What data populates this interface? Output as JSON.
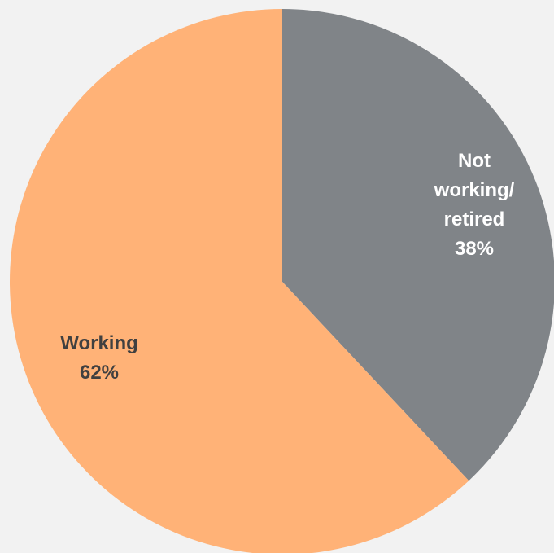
{
  "chart_data": {
    "type": "pie",
    "title": "",
    "legend": "none",
    "slices": [
      {
        "name": "Not working/ retired",
        "label_lines": [
          "Not",
          "working/",
          "retired"
        ],
        "percent_label": "38%",
        "value": 38,
        "color": "#808488",
        "label_color": "#ffffff"
      },
      {
        "name": "Working",
        "label_lines": [
          "Working"
        ],
        "percent_label": "62%",
        "value": 62,
        "color": "#ffb277",
        "label_color": "#404040"
      }
    ]
  },
  "colors": {
    "background": "#f2f2f2"
  }
}
